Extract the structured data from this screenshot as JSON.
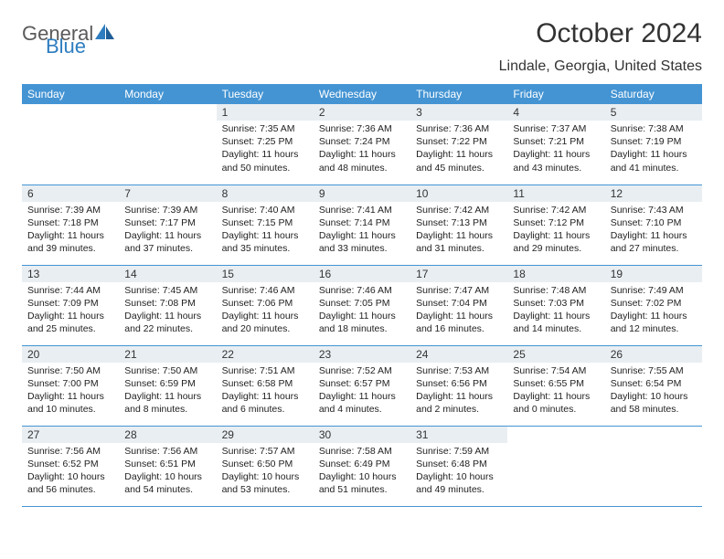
{
  "brand": {
    "part1": "General",
    "part2": "Blue"
  },
  "title": "October 2024",
  "location": "Lindale, Georgia, United States",
  "colors": {
    "header_bg": "#4494d3",
    "header_fg": "#ffffff",
    "daynum_bg": "#e9eef2",
    "border": "#4494d3",
    "brand_gray": "#5a5a5a",
    "brand_blue": "#2d7dc0"
  },
  "weekdays": [
    "Sunday",
    "Monday",
    "Tuesday",
    "Wednesday",
    "Thursday",
    "Friday",
    "Saturday"
  ],
  "weeks": [
    [
      {
        "empty": true
      },
      {
        "empty": true
      },
      {
        "n": "1",
        "sunrise": "Sunrise: 7:35 AM",
        "sunset": "Sunset: 7:25 PM",
        "day1": "Daylight: 11 hours",
        "day2": "and 50 minutes."
      },
      {
        "n": "2",
        "sunrise": "Sunrise: 7:36 AM",
        "sunset": "Sunset: 7:24 PM",
        "day1": "Daylight: 11 hours",
        "day2": "and 48 minutes."
      },
      {
        "n": "3",
        "sunrise": "Sunrise: 7:36 AM",
        "sunset": "Sunset: 7:22 PM",
        "day1": "Daylight: 11 hours",
        "day2": "and 45 minutes."
      },
      {
        "n": "4",
        "sunrise": "Sunrise: 7:37 AM",
        "sunset": "Sunset: 7:21 PM",
        "day1": "Daylight: 11 hours",
        "day2": "and 43 minutes."
      },
      {
        "n": "5",
        "sunrise": "Sunrise: 7:38 AM",
        "sunset": "Sunset: 7:19 PM",
        "day1": "Daylight: 11 hours",
        "day2": "and 41 minutes."
      }
    ],
    [
      {
        "n": "6",
        "sunrise": "Sunrise: 7:39 AM",
        "sunset": "Sunset: 7:18 PM",
        "day1": "Daylight: 11 hours",
        "day2": "and 39 minutes."
      },
      {
        "n": "7",
        "sunrise": "Sunrise: 7:39 AM",
        "sunset": "Sunset: 7:17 PM",
        "day1": "Daylight: 11 hours",
        "day2": "and 37 minutes."
      },
      {
        "n": "8",
        "sunrise": "Sunrise: 7:40 AM",
        "sunset": "Sunset: 7:15 PM",
        "day1": "Daylight: 11 hours",
        "day2": "and 35 minutes."
      },
      {
        "n": "9",
        "sunrise": "Sunrise: 7:41 AM",
        "sunset": "Sunset: 7:14 PM",
        "day1": "Daylight: 11 hours",
        "day2": "and 33 minutes."
      },
      {
        "n": "10",
        "sunrise": "Sunrise: 7:42 AM",
        "sunset": "Sunset: 7:13 PM",
        "day1": "Daylight: 11 hours",
        "day2": "and 31 minutes."
      },
      {
        "n": "11",
        "sunrise": "Sunrise: 7:42 AM",
        "sunset": "Sunset: 7:12 PM",
        "day1": "Daylight: 11 hours",
        "day2": "and 29 minutes."
      },
      {
        "n": "12",
        "sunrise": "Sunrise: 7:43 AM",
        "sunset": "Sunset: 7:10 PM",
        "day1": "Daylight: 11 hours",
        "day2": "and 27 minutes."
      }
    ],
    [
      {
        "n": "13",
        "sunrise": "Sunrise: 7:44 AM",
        "sunset": "Sunset: 7:09 PM",
        "day1": "Daylight: 11 hours",
        "day2": "and 25 minutes."
      },
      {
        "n": "14",
        "sunrise": "Sunrise: 7:45 AM",
        "sunset": "Sunset: 7:08 PM",
        "day1": "Daylight: 11 hours",
        "day2": "and 22 minutes."
      },
      {
        "n": "15",
        "sunrise": "Sunrise: 7:46 AM",
        "sunset": "Sunset: 7:06 PM",
        "day1": "Daylight: 11 hours",
        "day2": "and 20 minutes."
      },
      {
        "n": "16",
        "sunrise": "Sunrise: 7:46 AM",
        "sunset": "Sunset: 7:05 PM",
        "day1": "Daylight: 11 hours",
        "day2": "and 18 minutes."
      },
      {
        "n": "17",
        "sunrise": "Sunrise: 7:47 AM",
        "sunset": "Sunset: 7:04 PM",
        "day1": "Daylight: 11 hours",
        "day2": "and 16 minutes."
      },
      {
        "n": "18",
        "sunrise": "Sunrise: 7:48 AM",
        "sunset": "Sunset: 7:03 PM",
        "day1": "Daylight: 11 hours",
        "day2": "and 14 minutes."
      },
      {
        "n": "19",
        "sunrise": "Sunrise: 7:49 AM",
        "sunset": "Sunset: 7:02 PM",
        "day1": "Daylight: 11 hours",
        "day2": "and 12 minutes."
      }
    ],
    [
      {
        "n": "20",
        "sunrise": "Sunrise: 7:50 AM",
        "sunset": "Sunset: 7:00 PM",
        "day1": "Daylight: 11 hours",
        "day2": "and 10 minutes."
      },
      {
        "n": "21",
        "sunrise": "Sunrise: 7:50 AM",
        "sunset": "Sunset: 6:59 PM",
        "day1": "Daylight: 11 hours",
        "day2": "and 8 minutes."
      },
      {
        "n": "22",
        "sunrise": "Sunrise: 7:51 AM",
        "sunset": "Sunset: 6:58 PM",
        "day1": "Daylight: 11 hours",
        "day2": "and 6 minutes."
      },
      {
        "n": "23",
        "sunrise": "Sunrise: 7:52 AM",
        "sunset": "Sunset: 6:57 PM",
        "day1": "Daylight: 11 hours",
        "day2": "and 4 minutes."
      },
      {
        "n": "24",
        "sunrise": "Sunrise: 7:53 AM",
        "sunset": "Sunset: 6:56 PM",
        "day1": "Daylight: 11 hours",
        "day2": "and 2 minutes."
      },
      {
        "n": "25",
        "sunrise": "Sunrise: 7:54 AM",
        "sunset": "Sunset: 6:55 PM",
        "day1": "Daylight: 11 hours",
        "day2": "and 0 minutes."
      },
      {
        "n": "26",
        "sunrise": "Sunrise: 7:55 AM",
        "sunset": "Sunset: 6:54 PM",
        "day1": "Daylight: 10 hours",
        "day2": "and 58 minutes."
      }
    ],
    [
      {
        "n": "27",
        "sunrise": "Sunrise: 7:56 AM",
        "sunset": "Sunset: 6:52 PM",
        "day1": "Daylight: 10 hours",
        "day2": "and 56 minutes."
      },
      {
        "n": "28",
        "sunrise": "Sunrise: 7:56 AM",
        "sunset": "Sunset: 6:51 PM",
        "day1": "Daylight: 10 hours",
        "day2": "and 54 minutes."
      },
      {
        "n": "29",
        "sunrise": "Sunrise: 7:57 AM",
        "sunset": "Sunset: 6:50 PM",
        "day1": "Daylight: 10 hours",
        "day2": "and 53 minutes."
      },
      {
        "n": "30",
        "sunrise": "Sunrise: 7:58 AM",
        "sunset": "Sunset: 6:49 PM",
        "day1": "Daylight: 10 hours",
        "day2": "and 51 minutes."
      },
      {
        "n": "31",
        "sunrise": "Sunrise: 7:59 AM",
        "sunset": "Sunset: 6:48 PM",
        "day1": "Daylight: 10 hours",
        "day2": "and 49 minutes."
      },
      {
        "empty": true
      },
      {
        "empty": true
      }
    ]
  ]
}
